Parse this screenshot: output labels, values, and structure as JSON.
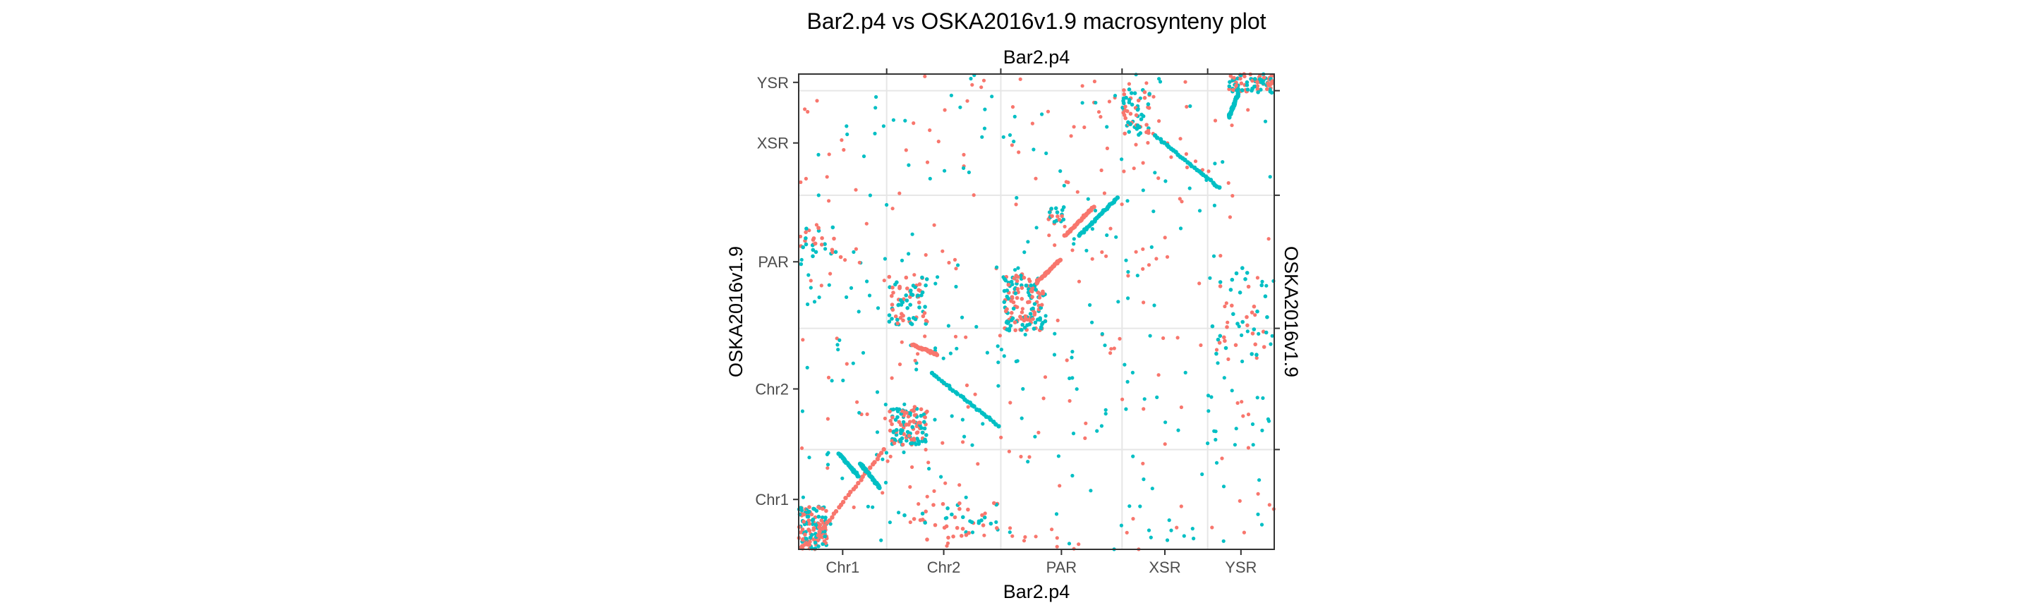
{
  "chart_data": {
    "type": "scatter",
    "title": "Bar2.p4 vs OSKA2016v1.9 macrosynteny plot",
    "xlabel_bottom": "Bar2.p4",
    "xlabel_top": "Bar2.p4",
    "ylabel_left": "OSKA2016v1.9",
    "ylabel_right": "OSKA2016v1.9",
    "x_categories": [
      "Chr1",
      "Chr2",
      "PAR",
      "XSR",
      "YSR"
    ],
    "x_boundaries": [
      0,
      0.185,
      0.425,
      0.68,
      0.86,
      1.0
    ],
    "y_categories": [
      "Chr1",
      "Chr2",
      "PAR",
      "XSR",
      "YSR"
    ],
    "y_boundaries": [
      0,
      0.21,
      0.465,
      0.745,
      0.965,
      1.0
    ],
    "xlim": [
      0,
      1
    ],
    "ylim": [
      0,
      1
    ],
    "grid": true,
    "legend": "none",
    "colors": {
      "forward": "#F8766D",
      "reverse": "#00BFC4"
    },
    "diagonal_runs": [
      {
        "x": [
          0.04,
          0.18
        ],
        "y": [
          0.03,
          0.21
        ],
        "orientation": "forward"
      },
      {
        "x": [
          0.085,
          0.125
        ],
        "y": [
          0.2,
          0.155
        ],
        "orientation": "reverse"
      },
      {
        "x": [
          0.13,
          0.17
        ],
        "y": [
          0.18,
          0.13
        ],
        "orientation": "reverse"
      },
      {
        "x": [
          0.28,
          0.42
        ],
        "y": [
          0.37,
          0.26
        ],
        "orientation": "reverse"
      },
      {
        "x": [
          0.24,
          0.29
        ],
        "y": [
          0.43,
          0.41
        ],
        "orientation": "forward"
      },
      {
        "x": [
          0.5,
          0.55
        ],
        "y": [
          0.56,
          0.61
        ],
        "orientation": "forward"
      },
      {
        "x": [
          0.56,
          0.62
        ],
        "y": [
          0.66,
          0.72
        ],
        "orientation": "forward"
      },
      {
        "x": [
          0.59,
          0.67
        ],
        "y": [
          0.66,
          0.74
        ],
        "orientation": "reverse"
      },
      {
        "x": [
          0.75,
          0.885
        ],
        "y": [
          0.87,
          0.76
        ],
        "orientation": "reverse"
      },
      {
        "x": [
          0.905,
          0.925
        ],
        "y": [
          0.91,
          0.96
        ],
        "orientation": "reverse"
      }
    ],
    "clusters": [
      {
        "x": [
          0.0,
          0.06
        ],
        "y": [
          0.0,
          0.09
        ],
        "n": 140,
        "orientation": "mixed"
      },
      {
        "x": [
          0.19,
          0.27
        ],
        "y": [
          0.47,
          0.58
        ],
        "n": 70,
        "orientation": "mixed"
      },
      {
        "x": [
          0.19,
          0.27
        ],
        "y": [
          0.22,
          0.3
        ],
        "n": 120,
        "orientation": "mixed"
      },
      {
        "x": [
          0.43,
          0.52
        ],
        "y": [
          0.46,
          0.58
        ],
        "n": 150,
        "orientation": "mixed"
      },
      {
        "x": [
          0.68,
          0.74
        ],
        "y": [
          0.87,
          0.97
        ],
        "n": 60,
        "orientation": "mixed"
      },
      {
        "x": [
          0.905,
          1.0
        ],
        "y": [
          0.96,
          1.0
        ],
        "n": 90,
        "orientation": "mixed"
      },
      {
        "x": [
          0.525,
          0.56
        ],
        "y": [
          0.68,
          0.72
        ],
        "n": 20,
        "orientation": "mixed"
      },
      {
        "x": [
          0.0,
          0.1
        ],
        "y": [
          0.6,
          0.68
        ],
        "n": 30,
        "orientation": "mixed"
      },
      {
        "x": [
          0.86,
          0.99
        ],
        "y": [
          0.4,
          0.6
        ],
        "n": 40,
        "orientation": "mixed"
      },
      {
        "x": [
          0.22,
          0.42
        ],
        "y": [
          0.02,
          0.1
        ],
        "n": 40,
        "orientation": "mixed"
      }
    ],
    "background_points": 520
  }
}
